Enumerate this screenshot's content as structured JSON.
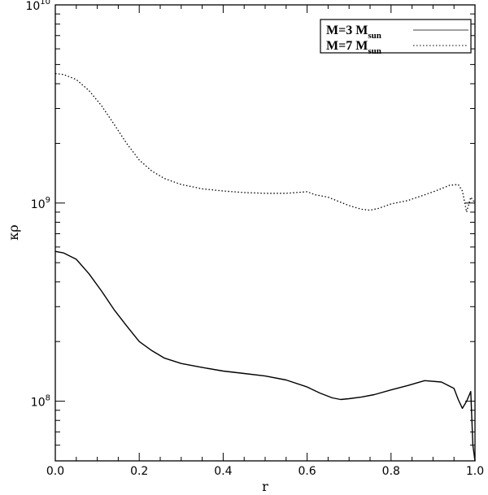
{
  "chart_data": {
    "type": "line",
    "xlabel": "r",
    "ylabel": "κρ",
    "xlim": [
      0.0,
      1.0
    ],
    "ylim": [
      50000000,
      10000000000
    ],
    "yscale": "log",
    "x_ticks": [
      "0.0",
      "0.2",
      "0.4",
      "0.6",
      "0.8",
      "1.0"
    ],
    "y_ticks": [
      {
        "value": 100000000,
        "base": "10",
        "exp": "8"
      },
      {
        "value": 1000000000,
        "base": "10",
        "exp": "9"
      },
      {
        "value": 10000000000,
        "base": "10",
        "exp": "10"
      }
    ],
    "legend_position": "top-right",
    "series": [
      {
        "name": "M=3 M",
        "subscript": "sun",
        "style": "solid",
        "color": "#000000",
        "x": [
          0.0,
          0.02,
          0.05,
          0.08,
          0.11,
          0.14,
          0.17,
          0.2,
          0.23,
          0.26,
          0.3,
          0.35,
          0.4,
          0.45,
          0.5,
          0.55,
          0.6,
          0.63,
          0.66,
          0.68,
          0.7,
          0.73,
          0.76,
          0.8,
          0.84,
          0.88,
          0.92,
          0.95,
          0.96,
          0.97,
          0.98,
          0.99,
          0.995,
          1.0
        ],
        "y": [
          570000000,
          560000000,
          520000000,
          440000000,
          360000000,
          290000000,
          240000000,
          200000000,
          180000000,
          165000000,
          155000000,
          148000000,
          142000000,
          138000000,
          134000000,
          128000000,
          118000000,
          110000000,
          104000000,
          102000000,
          103000000,
          105000000,
          108000000,
          114000000,
          120000000,
          127000000,
          125000000,
          116000000,
          102000000,
          92000000,
          100000000,
          112000000,
          60000000,
          50000000
        ]
      },
      {
        "name": "M=7 M",
        "subscript": "sun",
        "style": "dotted",
        "color": "#000000",
        "x": [
          0.0,
          0.02,
          0.05,
          0.08,
          0.11,
          0.14,
          0.17,
          0.2,
          0.23,
          0.26,
          0.3,
          0.35,
          0.4,
          0.45,
          0.5,
          0.55,
          0.6,
          0.62,
          0.65,
          0.7,
          0.73,
          0.75,
          0.77,
          0.8,
          0.84,
          0.88,
          0.91,
          0.94,
          0.96,
          0.97,
          0.98,
          0.99,
          1.0
        ],
        "y": [
          4500000000,
          4450000000,
          4200000000,
          3700000000,
          3100000000,
          2500000000,
          2000000000,
          1650000000,
          1450000000,
          1330000000,
          1240000000,
          1180000000,
          1150000000,
          1130000000,
          1120000000,
          1120000000,
          1140000000,
          1100000000,
          1070000000,
          970000000,
          930000000,
          920000000,
          940000000,
          990000000,
          1030000000,
          1100000000,
          1160000000,
          1230000000,
          1240000000,
          1150000000,
          900000000,
          1070000000,
          1000000000
        ]
      }
    ]
  }
}
